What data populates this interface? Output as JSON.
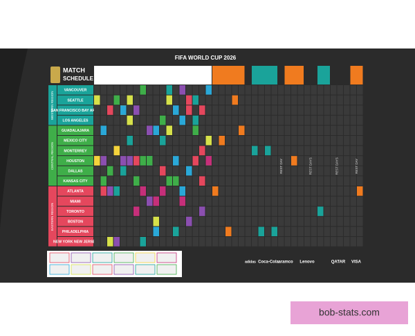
{
  "header": {
    "title": "FIFA WORLD CUP 2026",
    "subtitle_top": "MATCH",
    "subtitle_bottom": "SCHEDULE"
  },
  "regions": [
    {
      "name": "WESTERN REGION",
      "cities": [
        "VANCOUVER",
        "SEATTLE",
        "SAN FRANCISCO BAY AREA",
        "LOS ANGELES"
      ]
    },
    {
      "name": "CENTRAL REGION",
      "cities": [
        "GUADALAJARA",
        "MEXICO CITY",
        "MONTERREY",
        "HOUSTON",
        "DALLAS",
        "KANSAS CITY"
      ]
    },
    {
      "name": "EASTERN REGION",
      "cities": [
        "ATLANTA",
        "MIAMI",
        "TORONTO",
        "BOSTON",
        "PHILADELPHIA",
        "NEW YORK NEW JERSEY"
      ]
    }
  ],
  "rest_days": [
    "REST DAY",
    "REST DAYS",
    "REST DAYS",
    "REST DAY"
  ],
  "sponsors": [
    "adidas",
    "Coca-Cola",
    "aramco",
    "Lenovo",
    "QATAR",
    "VISA"
  ],
  "watermark": "bob-stats.com"
}
